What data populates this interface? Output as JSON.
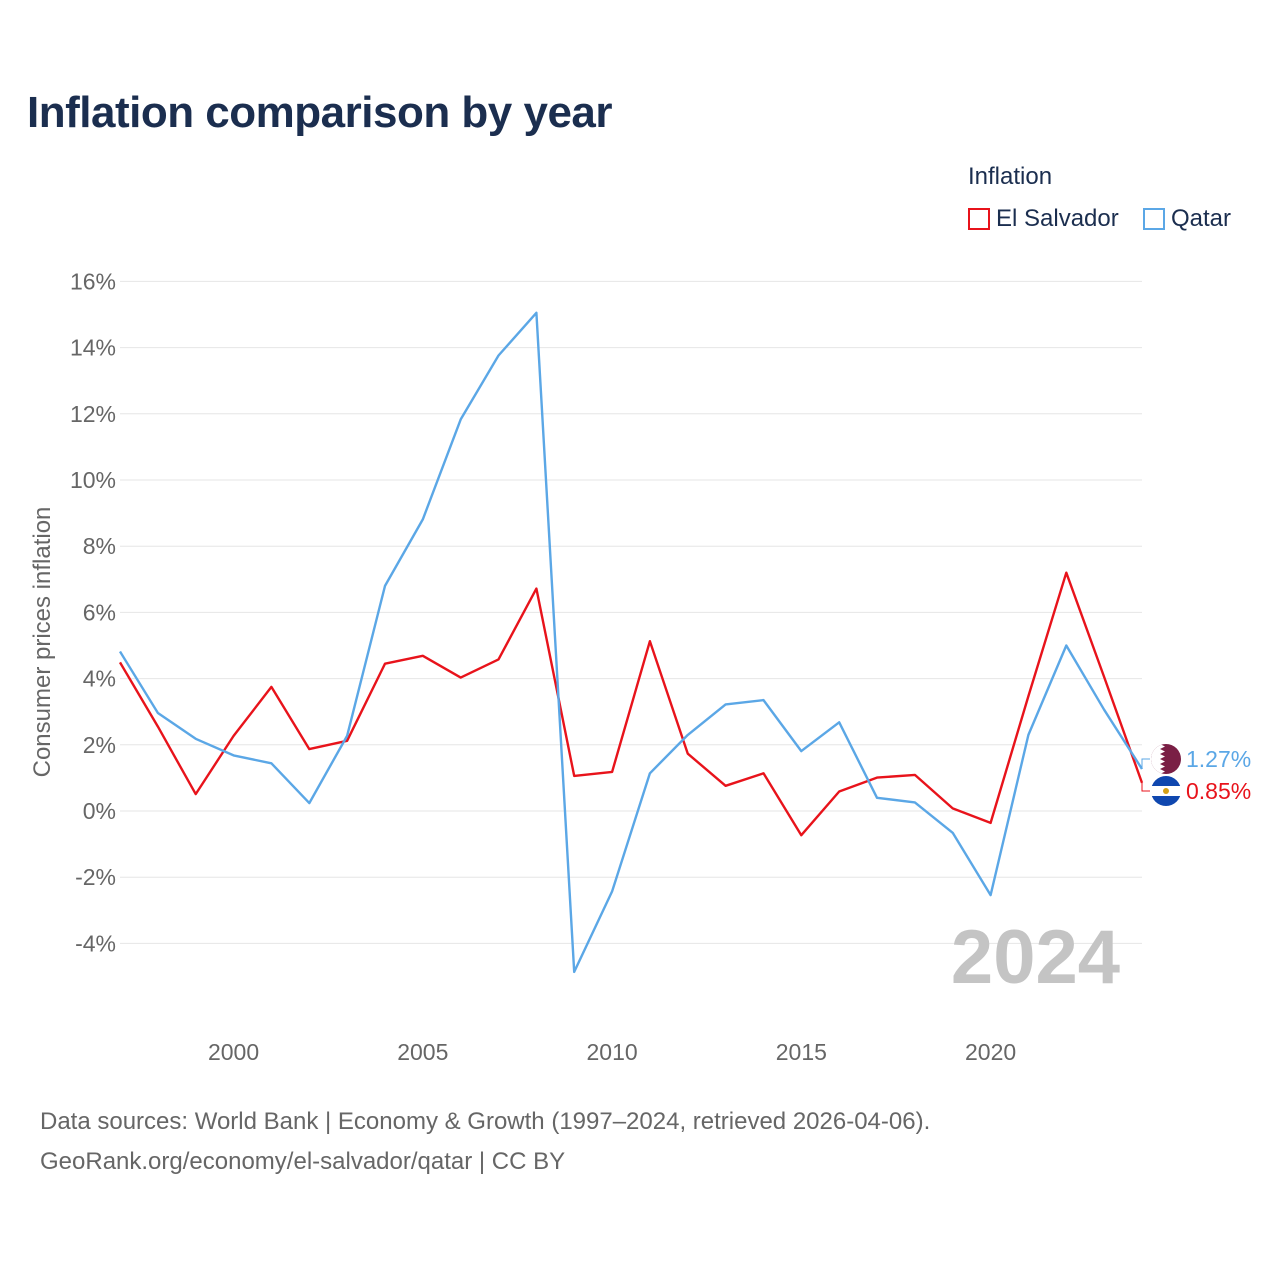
{
  "title": "Inflation comparison by year",
  "legend": {
    "title": "Inflation",
    "items": [
      {
        "label": "El Salvador",
        "color": "#e8131b"
      },
      {
        "label": "Qatar",
        "color": "#5ba7e6"
      }
    ]
  },
  "footer": {
    "line1": "Data sources: World Bank | Economy & Growth (1997–2024, retrieved 2026-04-06).",
    "line2": "GeoRank.org/economy/el-salvador/qatar | CC BY"
  },
  "chart_data": {
    "type": "line",
    "ylabel": "Consumer prices inflation",
    "xlabel": "",
    "year_watermark": "2024",
    "xlim": [
      1997,
      2024
    ],
    "ylim": [
      -6,
      16
    ],
    "x_ticks": [
      2000,
      2005,
      2010,
      2015,
      2020
    ],
    "y_ticks": [
      -4,
      -2,
      0,
      2,
      4,
      6,
      8,
      10,
      12,
      14,
      16
    ],
    "y_tick_labels": [
      "-4%",
      "-2%",
      "0%",
      "2%",
      "4%",
      "6%",
      "8%",
      "10%",
      "12%",
      "14%",
      "16%"
    ],
    "x": [
      1997,
      1998,
      1999,
      2000,
      2001,
      2002,
      2003,
      2004,
      2005,
      2006,
      2007,
      2008,
      2009,
      2010,
      2011,
      2012,
      2013,
      2014,
      2015,
      2016,
      2017,
      2018,
      2019,
      2020,
      2021,
      2022,
      2023,
      2024
    ],
    "series": [
      {
        "name": "El Salvador",
        "color": "#e8131b",
        "end_label": "0.85%",
        "flag": "el-salvador-flag-icon",
        "values": [
          4.49,
          2.55,
          0.51,
          2.27,
          3.75,
          1.87,
          2.12,
          4.45,
          4.69,
          4.03,
          4.58,
          6.72,
          1.06,
          1.18,
          5.13,
          1.73,
          0.76,
          1.14,
          -0.73,
          0.59,
          1.01,
          1.09,
          0.08,
          -0.36,
          3.47,
          7.2,
          4.05,
          0.85
        ]
      },
      {
        "name": "Qatar",
        "color": "#5ba7e6",
        "end_label": "1.27%",
        "flag": "qatar-flag-icon",
        "values": [
          4.82,
          2.96,
          2.18,
          1.68,
          1.44,
          0.24,
          2.27,
          6.8,
          8.81,
          11.83,
          13.76,
          15.05,
          -4.86,
          -2.43,
          1.14,
          2.3,
          3.22,
          3.35,
          1.81,
          2.68,
          0.4,
          0.26,
          -0.66,
          -2.54,
          2.3,
          5.0,
          3.06,
          1.27
        ]
      }
    ]
  }
}
